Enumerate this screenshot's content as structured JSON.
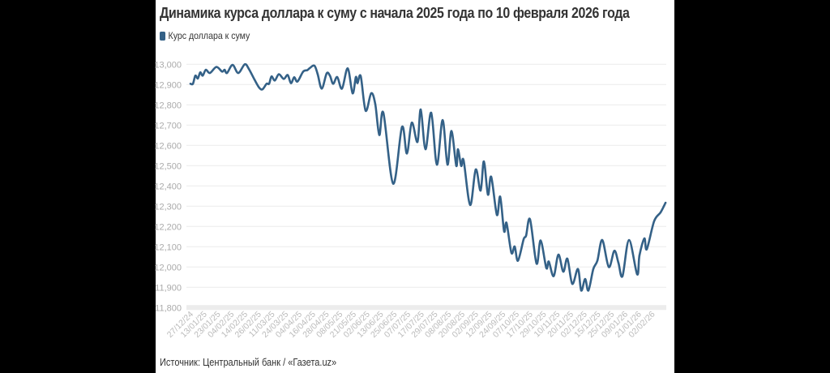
{
  "chart_data": {
    "type": "line",
    "title": "Динамика курса доллара к суму с начала 2025 года по 10 февраля 2026 года",
    "source": "Источник: Центральный банк / «Газета.uz»",
    "xlabel": "",
    "ylabel": "",
    "ylim": [
      11800,
      13000
    ],
    "yticks": [
      11800,
      11900,
      12000,
      12100,
      12200,
      12300,
      12400,
      12500,
      12600,
      12700,
      12800,
      12900,
      13000
    ],
    "ytick_labels": [
      "11,800",
      "11,900",
      "12,000",
      "12,100",
      "12,200",
      "12,300",
      "12,400",
      "12,500",
      "12,600",
      "12,700",
      "12,800",
      "12,900",
      "13,000"
    ],
    "grid": true,
    "legend_position": "top-left",
    "colors": {
      "line": "#346187"
    },
    "categories": [
      "27/12/24",
      "13/01/25",
      "23/01/25",
      "04/02/25",
      "14/02/25",
      "26/02/25",
      "11/03/25",
      "24/03/25",
      "04/04/25",
      "16/04/25",
      "28/04/25",
      "08/05/25",
      "21/05/25",
      "02/06/25",
      "13/06/25",
      "25/06/25",
      "07/07/25",
      "17/07/25",
      "29/07/25",
      "08/08/25",
      "20/08/25",
      "02/09/25",
      "12/09/25",
      "24/09/25",
      "07/10/25",
      "17/10/25",
      "29/10/25",
      "10/11/25",
      "20/11/25",
      "02/12/25",
      "15/12/25",
      "25/12/25",
      "09/01/26",
      "21/01/26",
      "02/02/26"
    ],
    "series": [
      {
        "name": "Курс доллара к суму",
        "points": [
          [
            0,
            12904
          ],
          [
            0.18,
            12904
          ],
          [
            0.36,
            12944
          ],
          [
            0.54,
            12930
          ],
          [
            0.72,
            12960
          ],
          [
            0.9,
            12944
          ],
          [
            1.13,
            12973
          ],
          [
            1.43,
            12957
          ],
          [
            1.91,
            12987
          ],
          [
            2.33,
            12964
          ],
          [
            2.51,
            12973
          ],
          [
            2.69,
            12957
          ],
          [
            3.1,
            12997
          ],
          [
            3.52,
            12957
          ],
          [
            4.0,
            13000
          ],
          [
            4.3,
            12977
          ],
          [
            4.72,
            12924
          ],
          [
            5.07,
            12884
          ],
          [
            5.31,
            12877
          ],
          [
            5.61,
            12904
          ],
          [
            5.79,
            12904
          ],
          [
            5.97,
            12940
          ],
          [
            6.21,
            12920
          ],
          [
            6.51,
            12951
          ],
          [
            6.87,
            12928
          ],
          [
            7.16,
            12947
          ],
          [
            7.4,
            12907
          ],
          [
            7.64,
            12936
          ],
          [
            7.88,
            12915
          ],
          [
            8.3,
            12964
          ],
          [
            8.6,
            12971
          ],
          [
            8.78,
            12981
          ],
          [
            9.13,
            12993
          ],
          [
            9.37,
            12951
          ],
          [
            9.67,
            12880
          ],
          [
            10.03,
            12955
          ],
          [
            10.27,
            12944
          ],
          [
            10.51,
            12904
          ],
          [
            10.81,
            12937
          ],
          [
            11.16,
            12880
          ],
          [
            11.58,
            12980
          ],
          [
            11.94,
            12857
          ],
          [
            12.18,
            12937
          ],
          [
            12.3,
            12907
          ],
          [
            12.54,
            12941
          ],
          [
            12.9,
            12771
          ],
          [
            13.31,
            12857
          ],
          [
            13.61,
            12804
          ],
          [
            13.91,
            12651
          ],
          [
            14.21,
            12760
          ],
          [
            14.93,
            12411
          ],
          [
            15.58,
            12691
          ],
          [
            15.94,
            12560
          ],
          [
            16.3,
            12712
          ],
          [
            16.72,
            12617
          ],
          [
            16.96,
            12777
          ],
          [
            17.31,
            12581
          ],
          [
            17.73,
            12761
          ],
          [
            18.15,
            12505
          ],
          [
            18.57,
            12725
          ],
          [
            18.93,
            12505
          ],
          [
            19.22,
            12671
          ],
          [
            19.58,
            12499
          ],
          [
            19.7,
            12581
          ],
          [
            19.94,
            12499
          ],
          [
            20.12,
            12525
          ],
          [
            20.6,
            12306
          ],
          [
            21.01,
            12481
          ],
          [
            21.37,
            12377
          ],
          [
            21.61,
            12521
          ],
          [
            21.91,
            12357
          ],
          [
            22.15,
            12445
          ],
          [
            22.57,
            12257
          ],
          [
            22.81,
            12347
          ],
          [
            23.1,
            12177
          ],
          [
            23.28,
            12217
          ],
          [
            23.64,
            12070
          ],
          [
            23.88,
            12101
          ],
          [
            24.12,
            12031
          ],
          [
            24.54,
            12137
          ],
          [
            24.72,
            12155
          ],
          [
            25.01,
            12235
          ],
          [
            25.49,
            12017
          ],
          [
            25.79,
            12131
          ],
          [
            26.21,
            11995
          ],
          [
            26.39,
            12027
          ],
          [
            26.75,
            11955
          ],
          [
            27.1,
            12061
          ],
          [
            27.46,
            11977
          ],
          [
            27.76,
            12041
          ],
          [
            28.12,
            11917
          ],
          [
            28.54,
            11990
          ],
          [
            28.78,
            11884
          ],
          [
            29.07,
            11941
          ],
          [
            29.31,
            11884
          ],
          [
            29.67,
            11990
          ],
          [
            29.97,
            12031
          ],
          [
            30.33,
            12133
          ],
          [
            30.81,
            12000
          ],
          [
            31.22,
            12080
          ],
          [
            31.52,
            12021
          ],
          [
            31.82,
            11955
          ],
          [
            32.3,
            12133
          ],
          [
            32.9,
            11964
          ],
          [
            33.07,
            12057
          ],
          [
            33.43,
            12141
          ],
          [
            33.61,
            12088
          ],
          [
            34.15,
            12226
          ],
          [
            34.63,
            12270
          ],
          [
            34.99,
            12317
          ]
        ]
      }
    ]
  }
}
